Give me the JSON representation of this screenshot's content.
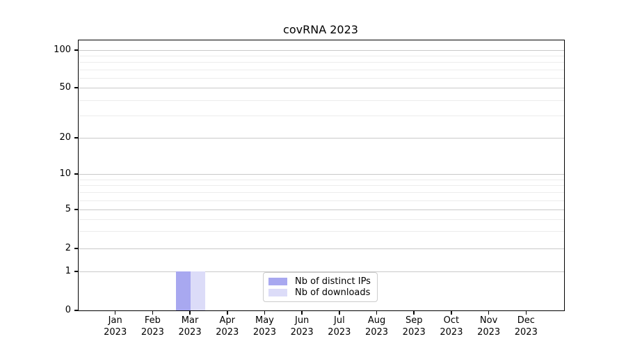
{
  "title": "covRNA 2023",
  "chart_data": {
    "type": "bar",
    "title": "covRNA 2023",
    "categories": [
      "Jan 2023",
      "Feb 2023",
      "Mar 2023",
      "Apr 2023",
      "May 2023",
      "Jun 2023",
      "Jul 2023",
      "Aug 2023",
      "Sep 2023",
      "Oct 2023",
      "Nov 2023",
      "Dec 2023"
    ],
    "series": [
      {
        "name": "Nb of distinct IPs",
        "color": "#a8a8f0",
        "values": [
          0,
          0,
          1,
          0,
          0,
          0,
          0,
          0,
          0,
          0,
          0,
          0
        ]
      },
      {
        "name": "Nb of downloads",
        "color": "#dcdcf8",
        "values": [
          0,
          0,
          1,
          0,
          0,
          0,
          0,
          0,
          0,
          0,
          0,
          0
        ]
      }
    ],
    "xlabel": "",
    "ylabel": "",
    "yscale": "symlog",
    "ylim": [
      0,
      120
    ],
    "y_major_ticks": [
      100,
      50,
      20,
      10,
      5,
      2,
      1,
      0
    ],
    "y_minor_gridlines": [
      90,
      80,
      70,
      60,
      40,
      30,
      9,
      8,
      7,
      6,
      4,
      3
    ],
    "grid": true,
    "legend_position": "lower center"
  },
  "style": {
    "grid_major_color": "#c9c9c9",
    "grid_minor_color": "#ececec",
    "spine_color": "#000000",
    "background": "#ffffff"
  }
}
